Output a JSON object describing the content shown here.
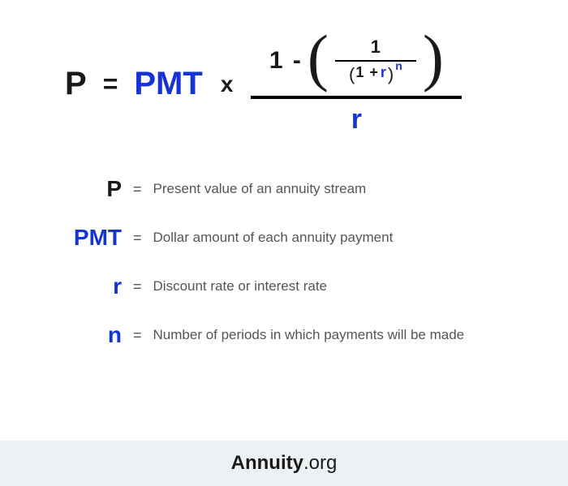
{
  "colors": {
    "text": "#1a1a1a",
    "accent": "#1633d6",
    "desc": "#555555",
    "footer_bg": "#eef1f3",
    "background": "#ffffff"
  },
  "formula": {
    "P": "P",
    "eq": "=",
    "PMT": "PMT",
    "times": "x",
    "one_minus": "1 -",
    "lparen": "(",
    "rparen": ")",
    "inner_num": "1",
    "inner_lp": "(",
    "inner_one_plus": "1 +",
    "inner_r": "r",
    "inner_rp": ")",
    "inner_n": "n",
    "denom_r": "r"
  },
  "legend": {
    "rows": [
      {
        "sym": "P",
        "sym_class": "lp",
        "desc": "Present value of an annuity stream"
      },
      {
        "sym": "PMT",
        "sym_class": "lpmt",
        "desc": "Dollar amount of each annuity payment"
      },
      {
        "sym": "r",
        "sym_class": "lr",
        "desc": "Discount rate or interest rate"
      },
      {
        "sym": "n",
        "sym_class": "ln",
        "desc": "Number of periods in which payments will be made"
      }
    ],
    "eq": "="
  },
  "footer": {
    "brand": "Annuity",
    "suffix": ".org"
  }
}
